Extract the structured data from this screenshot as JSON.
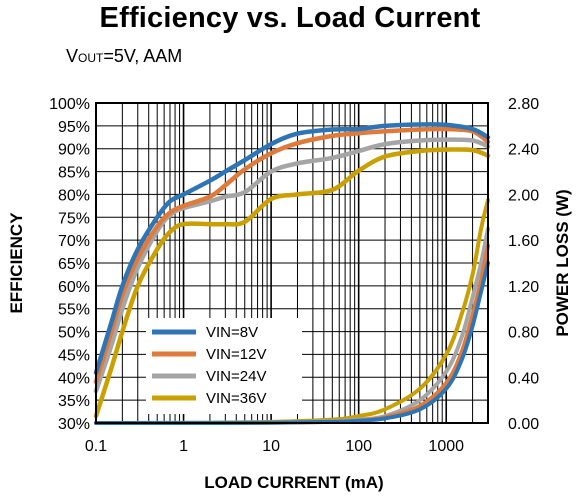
{
  "chart_data": {
    "type": "line",
    "title": "Efficiency vs. Load Current",
    "subtitle": {
      "v": "V",
      "sub": "OUT",
      "rest": "=5V, AAM"
    },
    "xlabel": "LOAD CURRENT  (mA)",
    "ylabel_left": "EFFICIENCY",
    "ylabel_right": "POWER LOSS (W)",
    "x_scale": "log",
    "xlim": [
      0.1,
      3000
    ],
    "ylim_left": [
      30,
      100
    ],
    "ylim_right": [
      0,
      2.8
    ],
    "x_ticks": [
      0.1,
      1,
      10,
      100,
      1000
    ],
    "x_tick_labels": [
      "0.1",
      "1",
      "10",
      "100",
      "1000"
    ],
    "y_left_ticks": [
      30,
      35,
      40,
      45,
      50,
      55,
      60,
      65,
      70,
      75,
      80,
      85,
      90,
      95,
      100
    ],
    "y_left_tick_labels": [
      "30%",
      "35%",
      "40%",
      "45%",
      "50%",
      "55%",
      "60%",
      "65%",
      "70%",
      "75%",
      "80%",
      "85%",
      "90%",
      "95%",
      "100%"
    ],
    "y_right_ticks": [
      0,
      0.4,
      0.8,
      1.2,
      1.6,
      2.0,
      2.4,
      2.8
    ],
    "y_right_tick_labels": [
      "0.00",
      "0.40",
      "0.80",
      "1.20",
      "1.60",
      "2.00",
      "2.40",
      "2.80"
    ],
    "grid": true,
    "legend_position": "bottom-left",
    "efficiency_series": [
      {
        "name": "VIN=8V",
        "color": "#2E75B6",
        "x": [
          0.1,
          0.15,
          0.2,
          0.3,
          0.5,
          0.7,
          1,
          2,
          3,
          5,
          10,
          20,
          50,
          100,
          200,
          500,
          1000,
          2000,
          3000
        ],
        "y": [
          41,
          52,
          60,
          68,
          75,
          78.5,
          80,
          83,
          85,
          87.5,
          91,
          93.3,
          94.2,
          94.3,
          95,
          95.3,
          95.2,
          94.3,
          92.5
        ]
      },
      {
        "name": "VIN=12V",
        "color": "#E07A3A",
        "x": [
          0.1,
          0.15,
          0.2,
          0.3,
          0.5,
          0.7,
          1,
          2,
          3,
          5,
          10,
          20,
          50,
          100,
          200,
          500,
          1000,
          2000,
          3000
        ],
        "y": [
          39,
          50,
          58,
          66,
          73,
          76,
          77.5,
          79.5,
          82,
          85.5,
          89,
          91.2,
          92.8,
          93.4,
          93.8,
          94.2,
          94.3,
          93.8,
          91.5
        ]
      },
      {
        "name": "VIN=24V",
        "color": "#A5A5A5",
        "x": [
          0.1,
          0.15,
          0.2,
          0.3,
          0.5,
          0.7,
          1,
          2,
          3,
          5,
          10,
          20,
          50,
          100,
          200,
          500,
          1000,
          2000,
          3000
        ],
        "y": [
          37,
          47,
          55,
          64,
          72,
          75.5,
          77,
          78.5,
          79.5,
          80.5,
          85,
          86.8,
          88,
          89.5,
          91,
          91.8,
          92,
          91.8,
          90.5
        ]
      },
      {
        "name": "VIN=36V",
        "color": "#C9A000",
        "x": [
          0.1,
          0.15,
          0.2,
          0.3,
          0.5,
          0.7,
          1,
          2,
          3,
          5,
          10,
          20,
          50,
          100,
          200,
          500,
          1000,
          2000,
          3000
        ],
        "y": [
          31.5,
          42,
          50,
          60,
          68,
          71.8,
          73.5,
          73.5,
          73.5,
          74,
          79,
          80,
          81,
          85.2,
          88.3,
          89.5,
          89.8,
          89.7,
          88.5
        ]
      }
    ],
    "power_loss_series": [
      {
        "name": "VIN=8V",
        "color": "#2E75B6",
        "x": [
          0.1,
          1,
          10,
          50,
          100,
          200,
          500,
          1000,
          1500,
          2000,
          2500,
          3000
        ],
        "y": [
          0,
          0,
          0.002,
          0.01,
          0.02,
          0.04,
          0.12,
          0.3,
          0.55,
          0.85,
          1.15,
          1.4
        ]
      },
      {
        "name": "VIN=12V",
        "color": "#E07A3A",
        "x": [
          0.1,
          1,
          10,
          50,
          100,
          200,
          500,
          1000,
          1500,
          2000,
          2500,
          3000
        ],
        "y": [
          0,
          0,
          0.002,
          0.01,
          0.02,
          0.05,
          0.15,
          0.35,
          0.62,
          0.95,
          1.25,
          1.55
        ]
      },
      {
        "name": "VIN=24V",
        "color": "#A5A5A5",
        "x": [
          0.1,
          1,
          10,
          50,
          100,
          200,
          500,
          1000,
          1500,
          2000,
          2500,
          3000
        ],
        "y": [
          0,
          0,
          0.004,
          0.015,
          0.03,
          0.06,
          0.2,
          0.45,
          0.75,
          1.1,
          1.4,
          1.7
        ]
      },
      {
        "name": "VIN=36V",
        "color": "#C9A000",
        "x": [
          0.1,
          1,
          3,
          10,
          50,
          100,
          200,
          500,
          1000,
          1500,
          2000,
          2500,
          3000
        ],
        "y": [
          0,
          0.002,
          0.005,
          0.01,
          0.03,
          0.06,
          0.12,
          0.3,
          0.6,
          0.95,
          1.3,
          1.7,
          1.95
        ]
      }
    ]
  }
}
